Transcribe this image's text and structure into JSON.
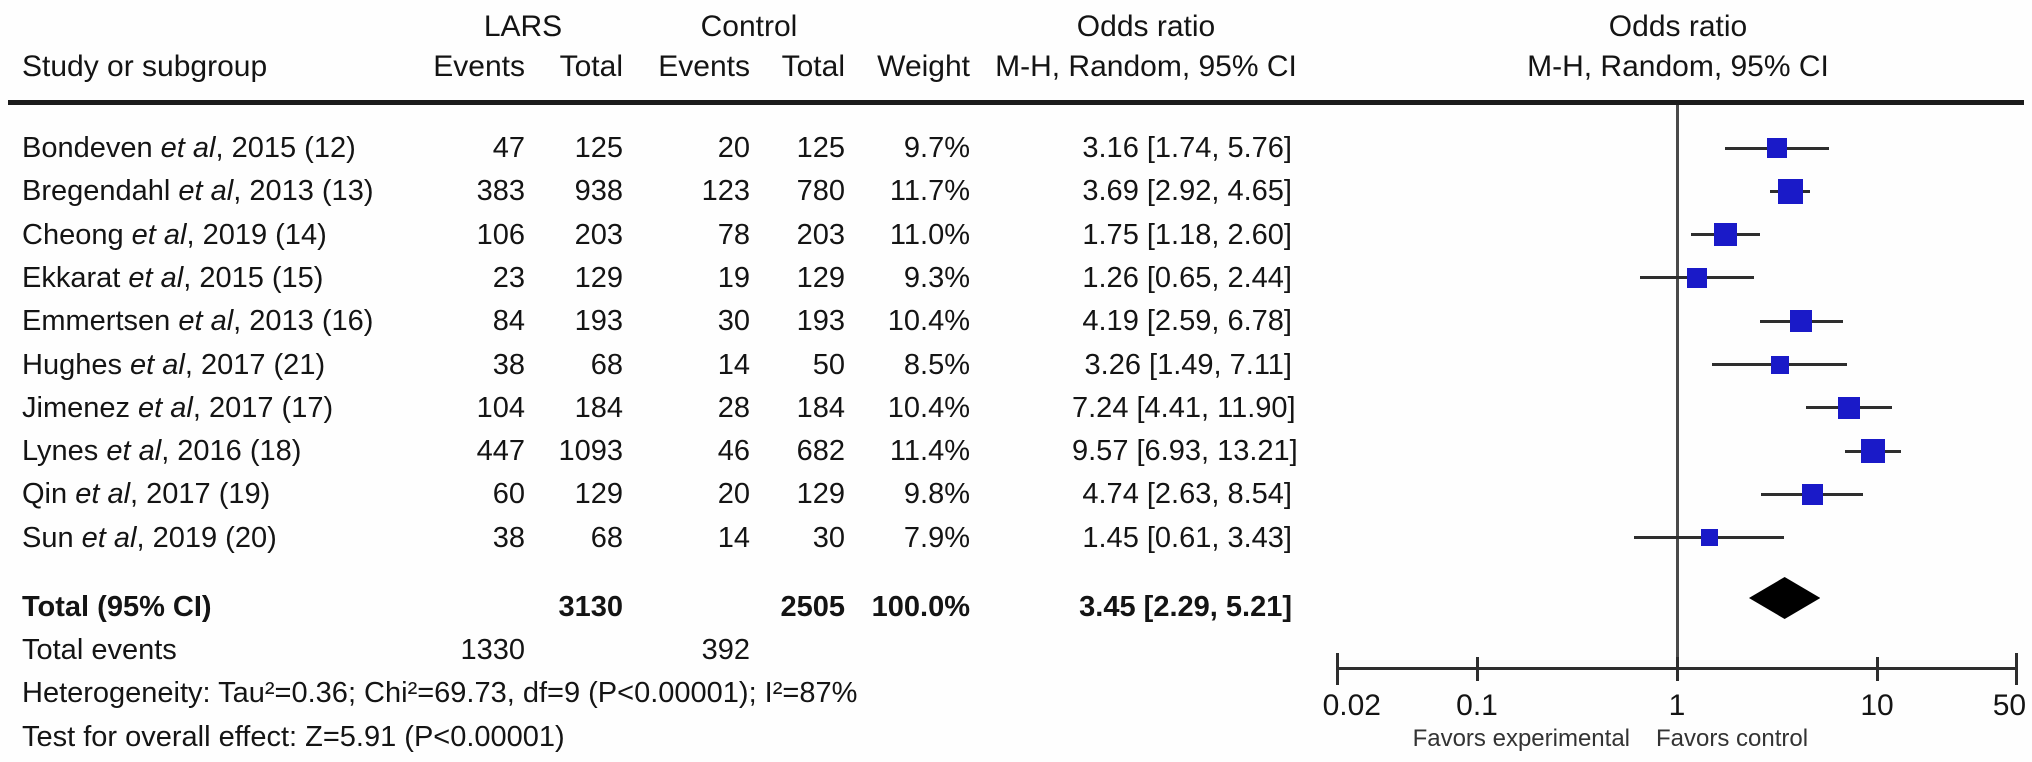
{
  "chart_data": {
    "type": "forest",
    "group_headers": {
      "experimental": "LARS",
      "control": "Control"
    },
    "column_headers": {
      "study": "Study or subgroup",
      "events": "Events",
      "total": "Total",
      "weight": "Weight",
      "or_text_title": "Odds ratio",
      "or_text_sub": "M-H, Random, 95% CI",
      "or_plot_title": "Odds ratio",
      "or_plot_sub": "M-H, Random, 95% CI"
    },
    "et_al": "et al",
    "studies": [
      {
        "author": "Bondeven",
        "tail": ", 2015 (12)",
        "e_events": "47",
        "e_total": "125",
        "c_events": "20",
        "c_total": "125",
        "weight": "9.7%",
        "weight_pct": 9.7,
        "or": 3.16,
        "ci_low": 1.74,
        "ci_high": 5.76,
        "or_text": "3.16 [1.74, 5.76]"
      },
      {
        "author": "Bregendahl",
        "tail": ", 2013 (13)",
        "e_events": "383",
        "e_total": "938",
        "c_events": "123",
        "c_total": "780",
        "weight": "11.7%",
        "weight_pct": 11.7,
        "or": 3.69,
        "ci_low": 2.92,
        "ci_high": 4.65,
        "or_text": "3.69 [2.92, 4.65]"
      },
      {
        "author": "Cheong",
        "tail": ", 2019 (14)",
        "e_events": "106",
        "e_total": "203",
        "c_events": "78",
        "c_total": "203",
        "weight": "11.0%",
        "weight_pct": 11.0,
        "or": 1.75,
        "ci_low": 1.18,
        "ci_high": 2.6,
        "or_text": "1.75 [1.18, 2.60]"
      },
      {
        "author": "Ekkarat",
        "tail": ", 2015 (15)",
        "e_events": "23",
        "e_total": "129",
        "c_events": "19",
        "c_total": "129",
        "weight": "9.3%",
        "weight_pct": 9.3,
        "or": 1.26,
        "ci_low": 0.65,
        "ci_high": 2.44,
        "or_text": "1.26 [0.65, 2.44]"
      },
      {
        "author": "Emmertsen",
        "tail": ", 2013 (16)",
        "e_events": "84",
        "e_total": "193",
        "c_events": "30",
        "c_total": "193",
        "weight": "10.4%",
        "weight_pct": 10.4,
        "or": 4.19,
        "ci_low": 2.59,
        "ci_high": 6.78,
        "or_text": "4.19 [2.59, 6.78]"
      },
      {
        "author": "Hughes",
        "tail": ", 2017 (21)",
        "e_events": "38",
        "e_total": "68",
        "c_events": "14",
        "c_total": "50",
        "weight": "8.5%",
        "weight_pct": 8.5,
        "or": 3.26,
        "ci_low": 1.49,
        "ci_high": 7.11,
        "or_text": "3.26 [1.49, 7.11]"
      },
      {
        "author": "Jimenez",
        "tail": ", 2017 (17)",
        "e_events": "104",
        "e_total": "184",
        "c_events": "28",
        "c_total": "184",
        "weight": "10.4%",
        "weight_pct": 10.4,
        "or": 7.24,
        "ci_low": 4.41,
        "ci_high": 11.9,
        "or_text": "7.24 [4.41, 11.90]"
      },
      {
        "author": "Lynes",
        "tail": ", 2016 (18)",
        "e_events": "447",
        "e_total": "1093",
        "c_events": "46",
        "c_total": "682",
        "weight": "11.4%",
        "weight_pct": 11.4,
        "or": 9.57,
        "ci_low": 6.93,
        "ci_high": 13.21,
        "or_text": "9.57 [6.93, 13.21]"
      },
      {
        "author": "Qin",
        "tail": ", 2017 (19)",
        "e_events": "60",
        "e_total": "129",
        "c_events": "20",
        "c_total": "129",
        "weight": "9.8%",
        "weight_pct": 9.8,
        "or": 4.74,
        "ci_low": 2.63,
        "ci_high": 8.54,
        "or_text": "4.74 [2.63, 8.54]"
      },
      {
        "author": "Sun",
        "tail": ", 2019 (20)",
        "e_events": "38",
        "e_total": "68",
        "c_events": "14",
        "c_total": "30",
        "weight": "7.9%",
        "weight_pct": 7.9,
        "or": 1.45,
        "ci_low": 0.61,
        "ci_high": 3.43,
        "or_text": "1.45 [0.61, 3.43]"
      }
    ],
    "total": {
      "label": "Total (95% CI)",
      "e_total": "3130",
      "c_total": "2505",
      "weight": "100.0%",
      "or": 3.45,
      "ci_low": 2.29,
      "ci_high": 5.21,
      "or_text": "3.45 [2.29, 5.21]"
    },
    "total_events": {
      "label": "Total events",
      "experimental": "1330",
      "control": "392"
    },
    "heterogeneity": "Heterogeneity: Tau²=0.36; Chi²=69.73, df=9 (P<0.00001); I²=87%",
    "overall_effect": "Test for overall effect: Z=5.91 (P<0.00001)",
    "axis": {
      "scale": "log",
      "min": 0.02,
      "max": 50,
      "ticks": [
        "0.02",
        "0.1",
        "1",
        "10",
        "50"
      ],
      "tick_values": [
        0.02,
        0.1,
        1,
        10,
        50
      ],
      "favors_left": "Favors experimental",
      "favors_right": "Favors control"
    },
    "colors": {
      "square": "#1a1ac8",
      "ci_line": "#2e2e2e",
      "diamond": "#000000",
      "axis": "#2e2e2e",
      "text": "#141414"
    }
  }
}
